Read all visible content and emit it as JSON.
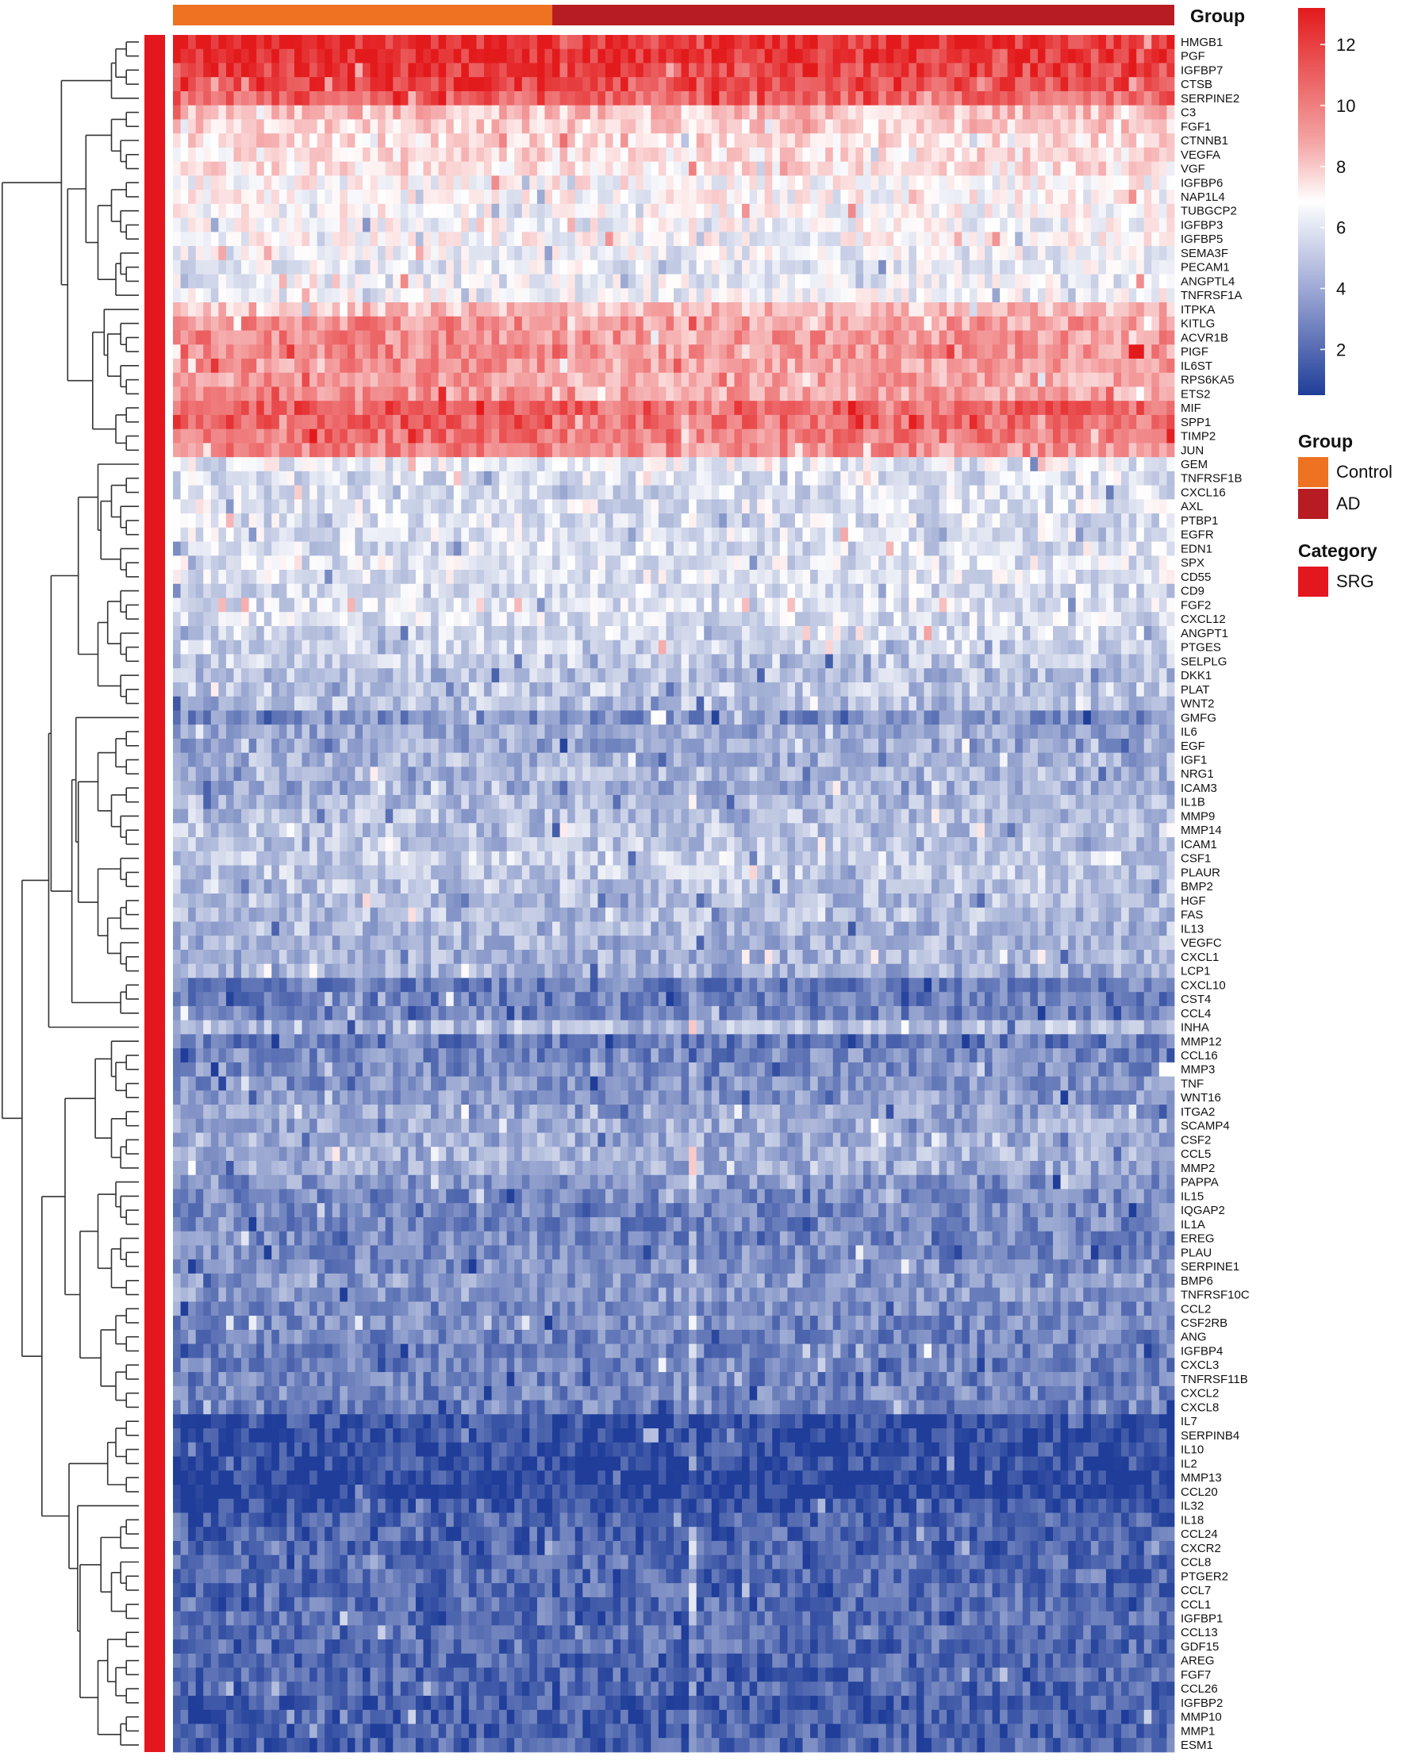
{
  "chart_data": {
    "type": "heatmap",
    "annotation_bar": {
      "title": "Group",
      "segments": [
        {
          "label": "Control",
          "color": "#EE7221"
        },
        {
          "label": "AD",
          "color": "#B71C23"
        }
      ]
    },
    "row_annotation": {
      "title": "Category",
      "items": [
        {
          "label": "SRG",
          "color": "#E4161E"
        }
      ]
    },
    "colorbar": {
      "range": [
        0.5,
        13.2
      ],
      "ticks": [
        12,
        10,
        8,
        6,
        4,
        2
      ],
      "colors": {
        "high": "#E31A1C",
        "mid": "#FFFFFF",
        "low": "#1F3D99"
      }
    },
    "rows": [
      "HMGB1",
      "PGF",
      "IGFBP7",
      "CTSB",
      "SERPINE2",
      "C3",
      "FGF1",
      "CTNNB1",
      "VEGFA",
      "VGF",
      "IGFBP6",
      "NAP1L4",
      "TUBGCP2",
      "IGFBP3",
      "IGFBP5",
      "SEMA3F",
      "PECAM1",
      "ANGPTL4",
      "TNFRSF1A",
      "ITPKA",
      "KITLG",
      "ACVR1B",
      "PIGF",
      "IL6ST",
      "RPS6KA5",
      "ETS2",
      "MIF",
      "SPP1",
      "TIMP2",
      "JUN",
      "GEM",
      "TNFRSF1B",
      "CXCL16",
      "AXL",
      "PTBP1",
      "EGFR",
      "EDN1",
      "SPX",
      "CD55",
      "CD9",
      "FGF2",
      "CXCL12",
      "ANGPT1",
      "PTGES",
      "SELPLG",
      "DKK1",
      "PLAT",
      "WNT2",
      "GMFG",
      "IL6",
      "EGF",
      "IGF1",
      "NRG1",
      "ICAM3",
      "IL1B",
      "MMP9",
      "MMP14",
      "ICAM1",
      "CSF1",
      "PLAUR",
      "BMP2",
      "HGF",
      "FAS",
      "IL13",
      "VEGFC",
      "CXCL1",
      "LCP1",
      "CXCL10",
      "CST4",
      "CCL4",
      "INHA",
      "MMP12",
      "CCL16",
      "MMP3",
      "TNF",
      "WNT16",
      "ITGA2",
      "SCAMP4",
      "CSF2",
      "CCL5",
      "MMP2",
      "PAPPA",
      "IL15",
      "IQGAP2",
      "IL1A",
      "EREG",
      "PLAU",
      "SERPINE1",
      "BMP6",
      "TNFRSF10C",
      "CCL2",
      "CSF2RB",
      "ANG",
      "IGFBP4",
      "CXCL3",
      "TNFRSF11B",
      "CXCL2",
      "CXCL8",
      "IL7",
      "SERPINB4",
      "IL10",
      "IL2",
      "MMP13",
      "CCL20",
      "IL32",
      "IL18",
      "CCL24",
      "CXCR2",
      "CCL8",
      "PTGER2",
      "CCL7",
      "CCL1",
      "IGFBP1",
      "CCL13",
      "GDF15",
      "AREG",
      "FGF7",
      "CCL26",
      "IGFBP2",
      "MMP10",
      "MMP1",
      "ESM1"
    ],
    "row_mean_levels": [
      12.3,
      12.3,
      11.9,
      11.6,
      10.9,
      8.6,
      8.3,
      8.0,
      7.8,
      7.7,
      7.2,
      7.1,
      7.0,
      6.9,
      7.0,
      6.6,
      6.5,
      6.5,
      6.7,
      8.7,
      9.5,
      9.6,
      9.7,
      9.4,
      9.3,
      9.3,
      11.0,
      10.8,
      10.3,
      9.8,
      6.5,
      6.1,
      6.0,
      6.2,
      6.1,
      6.2,
      6.0,
      6.2,
      6.3,
      5.9,
      6.0,
      6.1,
      5.8,
      5.6,
      5.4,
      5.0,
      5.3,
      5.0,
      3.6,
      4.4,
      4.3,
      4.6,
      4.8,
      4.5,
      4.8,
      5.0,
      5.2,
      5.2,
      5.5,
      5.3,
      5.2,
      5.0,
      4.9,
      4.8,
      4.7,
      4.6,
      4.5,
      3.1,
      3.0,
      3.2,
      5.0,
      3.0,
      3.4,
      3.5,
      3.7,
      3.9,
      4.2,
      4.4,
      4.5,
      4.6,
      4.4,
      3.8,
      3.5,
      3.4,
      3.3,
      3.4,
      3.5,
      3.6,
      3.8,
      3.9,
      3.5,
      3.4,
      3.3,
      3.2,
      3.1,
      3.2,
      3.3,
      3.2,
      1.6,
      1.5,
      1.6,
      1.5,
      1.2,
      1.1,
      1.8,
      2.2,
      2.3,
      2.4,
      2.6,
      2.5,
      2.5,
      2.6,
      2.7,
      2.6,
      2.5,
      2.4,
      2.4,
      2.3,
      2.2,
      2.0,
      2.1,
      2.3
    ],
    "columns": {
      "control_count": 50,
      "ad_count": 82
    }
  }
}
